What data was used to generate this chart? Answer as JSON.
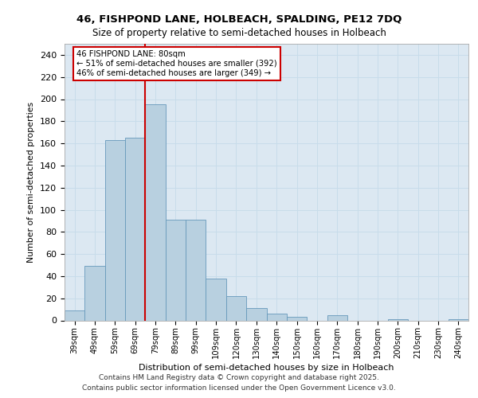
{
  "title1": "46, FISHPOND LANE, HOLBEACH, SPALDING, PE12 7DQ",
  "title2": "Size of property relative to semi-detached houses in Holbeach",
  "xlabel": "Distribution of semi-detached houses by size in Holbeach",
  "ylabel": "Number of semi-detached properties",
  "bar_values": [
    9,
    49,
    163,
    165,
    195,
    91,
    91,
    38,
    22,
    11,
    6,
    3,
    0,
    5,
    0,
    0,
    1,
    0,
    0,
    1
  ],
  "bar_labels": [
    "39sqm",
    "49sqm",
    "59sqm",
    "69sqm",
    "79sqm",
    "89sqm",
    "99sqm",
    "109sqm",
    "120sqm",
    "130sqm",
    "140sqm",
    "150sqm",
    "160sqm",
    "170sqm",
    "180sqm",
    "190sqm",
    "200sqm",
    "210sqm",
    "230sqm",
    "240sqm"
  ],
  "bar_color": "#b8d0e0",
  "bar_edge_color": "#6699bb",
  "vline_x": 3.5,
  "vline_color": "#cc0000",
  "annotation_text": "46 FISHPOND LANE: 80sqm\n← 51% of semi-detached houses are smaller (392)\n46% of semi-detached houses are larger (349) →",
  "annot_box_color": "#ffffff",
  "annot_box_edge": "#cc0000",
  "ylim": [
    0,
    250
  ],
  "yticks": [
    0,
    20,
    40,
    60,
    80,
    100,
    120,
    140,
    160,
    180,
    200,
    220,
    240
  ],
  "grid_color": "#c8dcea",
  "bg_color": "#dce8f2",
  "footer": "Contains HM Land Registry data © Crown copyright and database right 2025.\nContains public sector information licensed under the Open Government Licence v3.0."
}
